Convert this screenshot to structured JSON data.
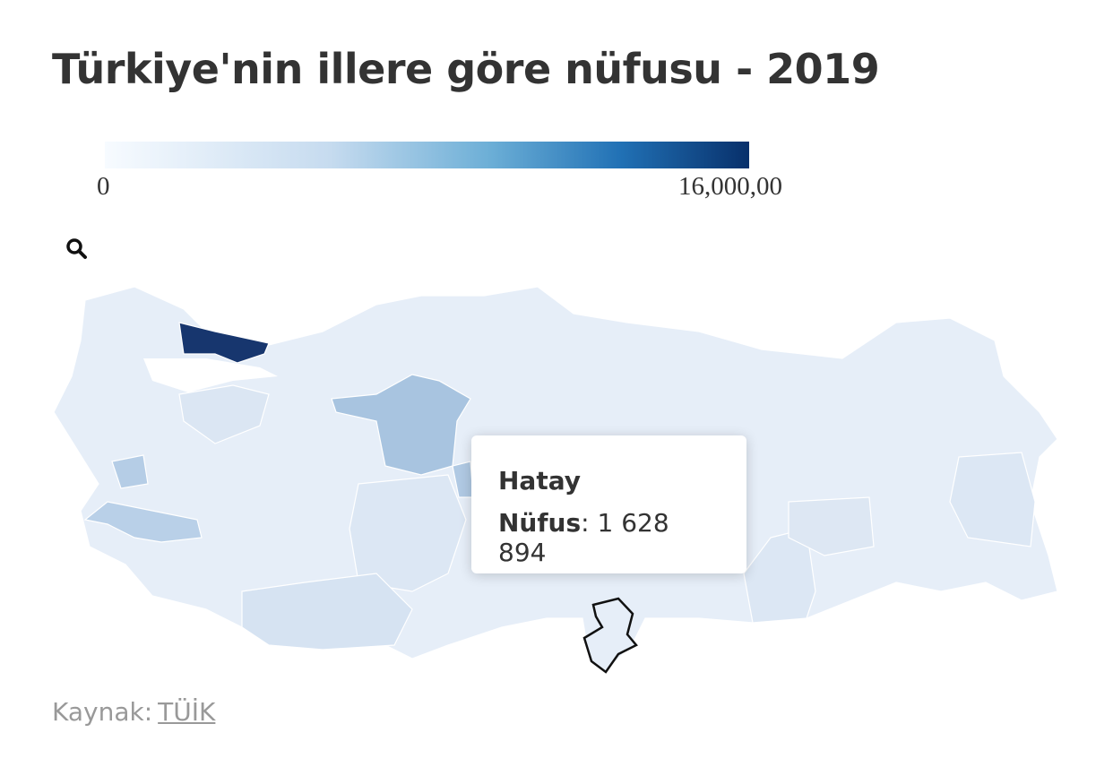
{
  "title": "Türkiye'nin illere göre nüfusu - 2019",
  "legend": {
    "min": "0",
    "max": "16,000,00"
  },
  "tooltip": {
    "name": "Hatay",
    "label": "Nüfus",
    "separator": ":",
    "value": "1 628 894"
  },
  "source": {
    "label": "Kaynak:",
    "link": "TÜİK"
  }
}
